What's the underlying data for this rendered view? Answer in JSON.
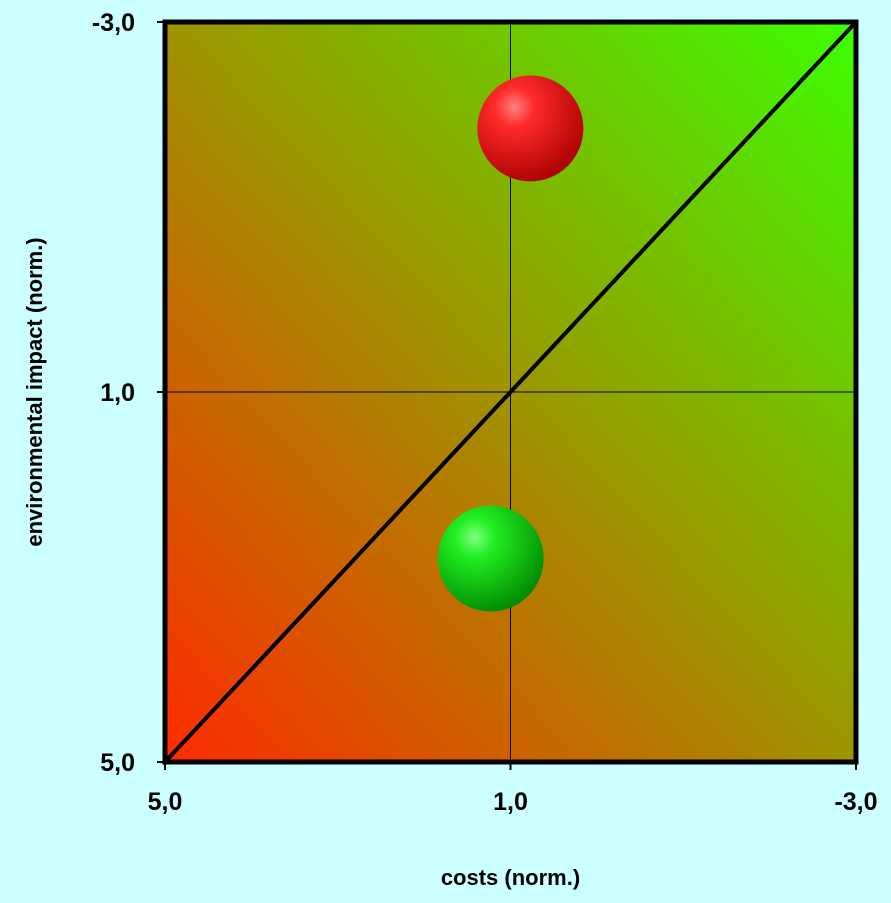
{
  "chart_data": {
    "type": "scatter",
    "xlabel": "costs (norm.)",
    "ylabel": "environmental impact (norm.)",
    "xlim": [
      5.0,
      -3.0
    ],
    "ylim": [
      5.0,
      -3.0
    ],
    "x_ticks": [
      {
        "value": 5.0,
        "label": "5,0"
      },
      {
        "value": 1.0,
        "label": "1,0"
      },
      {
        "value": -3.0,
        "label": "-3,0"
      }
    ],
    "y_ticks": [
      {
        "value": 5.0,
        "label": "5,0"
      },
      {
        "value": 1.0,
        "label": "1,0"
      },
      {
        "value": -3.0,
        "label": "-3,0"
      }
    ],
    "gridlines": [
      1.0
    ],
    "diagonal_line": {
      "from": [
        5.0,
        5.0
      ],
      "to": [
        -3.0,
        -3.0
      ]
    },
    "points": [
      {
        "x": 0.77,
        "y": -1.85,
        "color": "#ff0000"
      },
      {
        "x": 1.23,
        "y": 2.8,
        "color": "#00ee00"
      }
    ],
    "background_gradient": {
      "from_color": "#ff2a00",
      "to_color": "#3cff00"
    },
    "grid": true,
    "legend": "none"
  }
}
